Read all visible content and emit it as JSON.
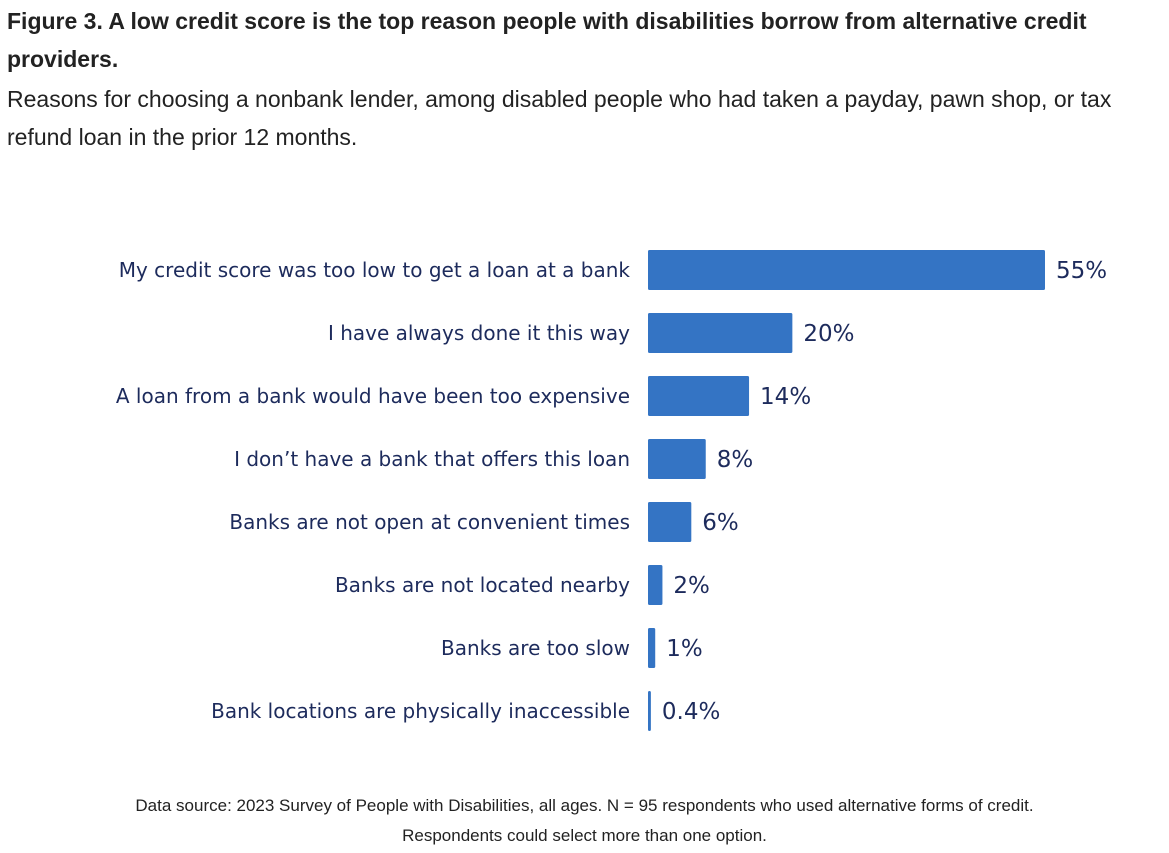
{
  "figure": {
    "title": "Figure 3. A low credit score is the top reason people with disabilities borrow from alternative credit providers.",
    "subtitle": "Reasons for choosing a nonbank lender, among disabled people who had taken a payday, pawn shop, or tax refund loan in the prior 12 months.",
    "footnote_line1": "Data source: 2023 Survey of People with Disabilities, all ages. N = 95 respondents who used alternative forms of credit.",
    "footnote_line2": "Respondents could select more than one option."
  },
  "colors": {
    "bar": "#3474c4",
    "label_text": "#1d2b5c",
    "body_text": "#222222"
  },
  "chart_data": {
    "type": "bar",
    "orientation": "horizontal",
    "categories": [
      "My credit score was too low to get a loan at a bank",
      "I have always done it this way",
      "A loan from a bank would have been too expensive",
      "I don’t have a bank that offers this loan",
      "Banks are not open at convenient times",
      "Banks are not located nearby",
      "Banks are too slow",
      "Bank locations are physically inaccessible"
    ],
    "values": [
      55,
      20,
      14,
      8,
      6,
      2,
      1,
      0.4
    ],
    "value_labels": [
      "55%",
      "20%",
      "14%",
      "8%",
      "6%",
      "2%",
      "1%",
      "0.4%"
    ],
    "unit": "%",
    "xlim": [
      0,
      55
    ],
    "grid": false,
    "legend": "none"
  }
}
